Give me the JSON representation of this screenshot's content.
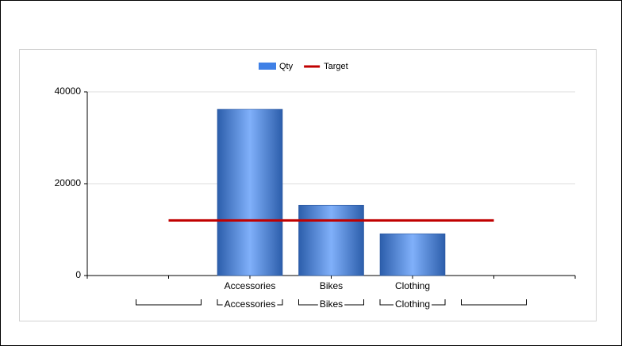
{
  "chart_data": {
    "type": "bar",
    "categories": [
      null,
      "Accessories",
      "Bikes",
      "Clothing",
      null
    ],
    "series": [
      {
        "name": "Qty",
        "type": "bar",
        "color": "#3f80e6",
        "values": [
          null,
          36200,
          15300,
          9100,
          null
        ]
      },
      {
        "name": "Target",
        "type": "line",
        "color": "#c00000",
        "values": [
          12000,
          12000,
          12000,
          12000,
          12000
        ]
      }
    ],
    "ylim": [
      0,
      40000
    ],
    "yticks": [
      0,
      20000,
      40000
    ],
    "grid": true,
    "legend": "top"
  }
}
